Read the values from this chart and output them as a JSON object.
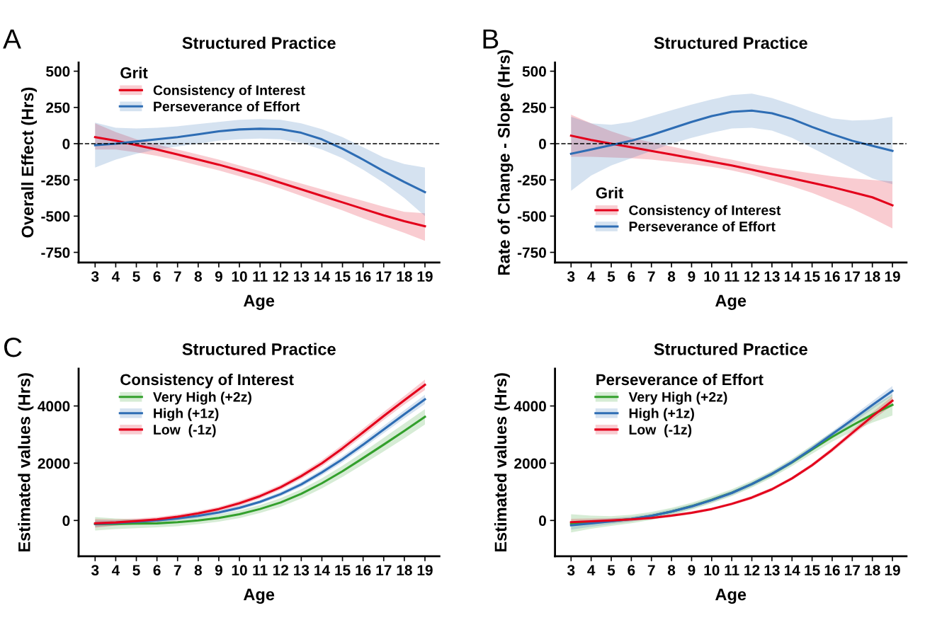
{
  "chart_data": [
    {
      "type": "line",
      "title": "Structured Practice",
      "xlabel": "Age",
      "ylabel": "Overall Effect (Hrs)",
      "legend_title": "Grit",
      "legend": "top left",
      "grid": false,
      "annotations": [
        "A"
      ],
      "x": [
        3,
        4,
        5,
        6,
        7,
        8,
        9,
        10,
        11,
        12,
        13,
        14,
        15,
        16,
        17,
        18,
        19
      ],
      "xlim": [
        2.2,
        19.7
      ],
      "xticks": [
        3,
        4,
        5,
        6,
        7,
        8,
        9,
        10,
        11,
        12,
        13,
        14,
        15,
        16,
        17,
        18,
        19
      ],
      "ylim": [
        -820,
        560
      ],
      "yticks": [
        -750,
        -500,
        -250,
        0,
        250,
        500
      ],
      "ref_lines": [
        {
          "axis": "y",
          "value": 0,
          "label": null,
          "color": "#000000",
          "line_style": "dashed"
        }
      ],
      "series": [
        {
          "name": "Consistency of Interest",
          "color": "#e3001b",
          "values": [
            45,
            20,
            -10,
            -40,
            -75,
            -110,
            -145,
            -185,
            -225,
            -270,
            -315,
            -360,
            -405,
            -450,
            -495,
            -535,
            -570
          ],
          "lower": [
            -40,
            -40,
            -60,
            -85,
            -115,
            -150,
            -185,
            -225,
            -265,
            -310,
            -360,
            -410,
            -460,
            -515,
            -565,
            -615,
            -670
          ],
          "upper": [
            140,
            80,
            30,
            -5,
            -40,
            -75,
            -110,
            -150,
            -190,
            -235,
            -275,
            -315,
            -355,
            -395,
            -435,
            -470,
            -480
          ]
        },
        {
          "name": "Perseverance of Effort",
          "color": "#2e6db4",
          "values": [
            -10,
            0,
            15,
            30,
            45,
            65,
            85,
            98,
            103,
            100,
            75,
            30,
            -35,
            -110,
            -190,
            -265,
            -335
          ],
          "lower": [
            -165,
            -110,
            -70,
            -40,
            -20,
            0,
            20,
            30,
            35,
            30,
            5,
            -40,
            -100,
            -180,
            -270,
            -375,
            -500
          ],
          "upper": [
            145,
            110,
            105,
            110,
            120,
            135,
            150,
            165,
            170,
            165,
            140,
            100,
            45,
            -25,
            -95,
            -140,
            -165
          ]
        }
      ]
    },
    {
      "type": "line",
      "title": "Structured Practice",
      "xlabel": "Age",
      "ylabel": "Rate of Change - Slope (Hrs)",
      "legend_title": "Grit",
      "legend": "bottom left",
      "grid": false,
      "annotations": [
        "B"
      ],
      "x": [
        3,
        4,
        5,
        6,
        7,
        8,
        9,
        10,
        11,
        12,
        13,
        14,
        15,
        16,
        17,
        18,
        19
      ],
      "xlim": [
        2.2,
        19.7
      ],
      "xticks": [
        3,
        4,
        5,
        6,
        7,
        8,
        9,
        10,
        11,
        12,
        13,
        14,
        15,
        16,
        17,
        18,
        19
      ],
      "ylim": [
        -820,
        560
      ],
      "yticks": [
        -750,
        -500,
        -250,
        0,
        250,
        500
      ],
      "ref_lines": [
        {
          "axis": "y",
          "value": 0,
          "label": null,
          "color": "#000000",
          "line_style": "dashed"
        }
      ],
      "series": [
        {
          "name": "Consistency of Interest",
          "color": "#e3001b",
          "values": [
            55,
            25,
            0,
            -25,
            -50,
            -75,
            -100,
            -125,
            -150,
            -180,
            -210,
            -240,
            -270,
            -300,
            -335,
            -370,
            -425
          ],
          "lower": [
            -90,
            -90,
            -95,
            -100,
            -110,
            -125,
            -140,
            -160,
            -185,
            -215,
            -255,
            -295,
            -340,
            -395,
            -450,
            -515,
            -585
          ],
          "upper": [
            200,
            140,
            85,
            40,
            10,
            -20,
            -50,
            -85,
            -110,
            -140,
            -165,
            -185,
            -205,
            -225,
            -240,
            -250,
            -260
          ]
        },
        {
          "name": "Perseverance of Effort",
          "color": "#2e6db4",
          "values": [
            -70,
            -40,
            -10,
            20,
            60,
            105,
            150,
            190,
            220,
            228,
            210,
            170,
            115,
            65,
            20,
            -15,
            -50
          ],
          "lower": [
            -325,
            -220,
            -150,
            -100,
            -50,
            0,
            40,
            75,
            105,
            110,
            90,
            40,
            -30,
            -100,
            -170,
            -240,
            -280
          ],
          "upper": [
            185,
            140,
            130,
            150,
            190,
            230,
            270,
            305,
            335,
            345,
            315,
            270,
            220,
            175,
            160,
            165,
            185
          ]
        }
      ]
    },
    {
      "type": "line",
      "title": "Structured Practice",
      "xlabel": "Age",
      "ylabel": "Estimated values (Hrs)",
      "legend_title": "Consistency of Interest",
      "legend": "top left",
      "grid": false,
      "annotations": [
        "C"
      ],
      "x": [
        3,
        4,
        5,
        6,
        7,
        8,
        9,
        10,
        11,
        12,
        13,
        14,
        15,
        16,
        17,
        18,
        19
      ],
      "xlim": [
        2.2,
        19.7
      ],
      "xticks": [
        3,
        4,
        5,
        6,
        7,
        8,
        9,
        10,
        11,
        12,
        13,
        14,
        15,
        16,
        17,
        18,
        19
      ],
      "ylim": [
        -1250,
        5300
      ],
      "yticks": [
        0,
        2000,
        4000
      ],
      "series": [
        {
          "name": "Very High (+2z)",
          "color": "#33a02c",
          "values": [
            -130,
            -120,
            -110,
            -100,
            -60,
            0,
            90,
            220,
            400,
            630,
            930,
            1300,
            1720,
            2180,
            2650,
            3130,
            3620
          ],
          "lower": [
            -350,
            -300,
            -270,
            -240,
            -200,
            -130,
            -40,
            80,
            260,
            480,
            770,
            1120,
            1520,
            1960,
            2410,
            2870,
            3350
          ],
          "upper": [
            120,
            70,
            40,
            30,
            70,
            120,
            210,
            350,
            540,
            780,
            1090,
            1470,
            1910,
            2390,
            2890,
            3390,
            3890
          ]
        },
        {
          "name": "High (+1z)",
          "color": "#2e6db4",
          "values": [
            -120,
            -90,
            -50,
            0,
            70,
            160,
            280,
            440,
            650,
            920,
            1260,
            1680,
            2140,
            2650,
            3180,
            3710,
            4230
          ],
          "lower": [
            -230,
            -180,
            -130,
            -70,
            0,
            90,
            210,
            370,
            580,
            840,
            1170,
            1580,
            2030,
            2530,
            3050,
            3570,
            4070
          ],
          "upper": [
            0,
            0,
            30,
            70,
            140,
            230,
            350,
            510,
            720,
            1000,
            1350,
            1780,
            2250,
            2770,
            3310,
            3850,
            4390
          ]
        },
        {
          "name": "Low  (-1z)",
          "color": "#e3001b",
          "values": [
            -100,
            -70,
            -20,
            40,
            130,
            250,
            400,
            600,
            850,
            1160,
            1550,
            2000,
            2520,
            3080,
            3650,
            4200,
            4740
          ],
          "lower": [
            -250,
            -180,
            -110,
            -40,
            50,
            170,
            320,
            510,
            760,
            1070,
            1450,
            1890,
            2400,
            2950,
            3510,
            4050,
            4560
          ],
          "upper": [
            50,
            40,
            70,
            120,
            210,
            330,
            480,
            690,
            940,
            1250,
            1650,
            2110,
            2640,
            3210,
            3790,
            4350,
            4920
          ]
        }
      ]
    },
    {
      "type": "line",
      "title": "Structured Practice",
      "xlabel": "Age",
      "ylabel": "Estimated values (Hrs)",
      "legend_title": "Perseverance of Effort",
      "legend": "top left",
      "grid": false,
      "x": [
        3,
        4,
        5,
        6,
        7,
        8,
        9,
        10,
        11,
        12,
        13,
        14,
        15,
        16,
        17,
        18,
        19
      ],
      "xlim": [
        2.2,
        19.7
      ],
      "xticks": [
        3,
        4,
        5,
        6,
        7,
        8,
        9,
        10,
        11,
        12,
        13,
        14,
        15,
        16,
        17,
        18,
        19
      ],
      "ylim": [
        -1250,
        5300
      ],
      "yticks": [
        0,
        2000,
        4000
      ],
      "series": [
        {
          "name": "Very High (+2z)",
          "color": "#33a02c",
          "values": [
            -100,
            -60,
            -20,
            50,
            160,
            310,
            500,
            720,
            970,
            1270,
            1620,
            2030,
            2480,
            2920,
            3320,
            3700,
            4040
          ],
          "lower": [
            -420,
            -290,
            -190,
            -100,
            20,
            180,
            380,
            600,
            850,
            1150,
            1500,
            1900,
            2330,
            2750,
            3110,
            3420,
            3670
          ],
          "upper": [
            220,
            170,
            150,
            200,
            300,
            440,
            620,
            840,
            1090,
            1390,
            1740,
            2160,
            2630,
            3090,
            3530,
            3980,
            4410
          ]
        },
        {
          "name": "High (+1z)",
          "color": "#2e6db4",
          "values": [
            -170,
            -100,
            -30,
            50,
            160,
            310,
            490,
            710,
            960,
            1270,
            1630,
            2040,
            2510,
            3010,
            3520,
            4030,
            4530
          ],
          "lower": [
            -320,
            -220,
            -130,
            -40,
            80,
            230,
            410,
            630,
            880,
            1190,
            1550,
            1960,
            2420,
            2910,
            3400,
            3890,
            4360
          ],
          "upper": [
            -20,
            20,
            70,
            140,
            240,
            390,
            570,
            790,
            1040,
            1350,
            1710,
            2120,
            2600,
            3110,
            3640,
            4170,
            4700
          ]
        },
        {
          "name": "Low  (-1z)",
          "color": "#e3001b",
          "values": [
            -60,
            -30,
            0,
            40,
            90,
            170,
            270,
            400,
            580,
            800,
            1090,
            1470,
            1930,
            2470,
            3060,
            3640,
            4180
          ],
          "lower": [
            -180,
            -130,
            -80,
            -20,
            40,
            120,
            220,
            350,
            530,
            740,
            1030,
            1410,
            1860,
            2390,
            2960,
            3510,
            4020
          ],
          "upper": [
            60,
            70,
            80,
            100,
            140,
            220,
            320,
            450,
            630,
            860,
            1150,
            1530,
            2000,
            2550,
            3160,
            3770,
            4340
          ]
        }
      ]
    }
  ]
}
